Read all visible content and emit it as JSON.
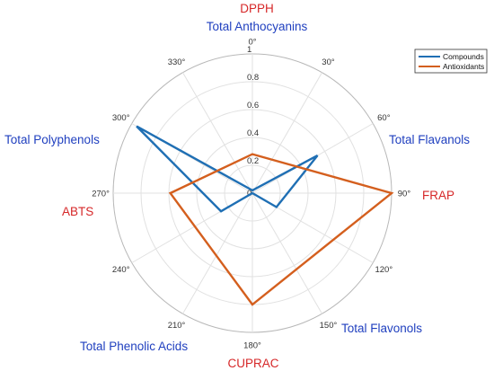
{
  "chart_data": {
    "type": "polar-line",
    "r_ticks": [
      "0",
      "0.2",
      "0.4",
      "0.6",
      "0.8",
      "1"
    ],
    "r_values": [
      0,
      0.2,
      0.4,
      0.6,
      0.8,
      1
    ],
    "rlim": [
      0,
      1
    ],
    "angle_ticks": [
      "0°",
      "30°",
      "60°",
      "90°",
      "120°",
      "150°",
      "180°",
      "210°",
      "240°",
      "270°",
      "300°",
      "330°"
    ],
    "angle_values": [
      0,
      30,
      60,
      90,
      120,
      150,
      180,
      210,
      240,
      270,
      300,
      330
    ],
    "theta_zero": "top",
    "theta_direction": "clockwise",
    "grid": true,
    "legend_position": "top-right",
    "category_labels": [
      {
        "text": "DPPH",
        "group": "antioxidant",
        "color": "#d62728"
      },
      {
        "text": "Total Anthocyanins",
        "group": "compound",
        "color": "#1f3fbf"
      },
      {
        "text": "Total Flavanols",
        "group": "compound",
        "color": "#1f3fbf"
      },
      {
        "text": "FRAP",
        "group": "antioxidant",
        "color": "#d62728"
      },
      {
        "text": "Total Flavonols",
        "group": "compound",
        "color": "#1f3fbf"
      },
      {
        "text": "CUPRAC",
        "group": "antioxidant",
        "color": "#d62728"
      },
      {
        "text": "Total Phenolic Acids",
        "group": "compound",
        "color": "#1f3fbf"
      },
      {
        "text": "ABTS",
        "group": "antioxidant",
        "color": "#d62728"
      },
      {
        "text": "Total Polyphenols",
        "group": "compound",
        "color": "#1f3fbf"
      }
    ],
    "series": [
      {
        "name": "Compounds",
        "color": "#1f6fb4",
        "theta": [
          0,
          60,
          120,
          180,
          240,
          300
        ],
        "r": [
          0.02,
          0.54,
          0.2,
          0.0,
          0.26,
          0.96
        ]
      },
      {
        "name": "Antioxidants",
        "color": "#d45f1e",
        "theta": [
          0,
          90,
          180,
          270
        ],
        "r": [
          0.28,
          1.0,
          0.8,
          0.59
        ]
      }
    ]
  }
}
